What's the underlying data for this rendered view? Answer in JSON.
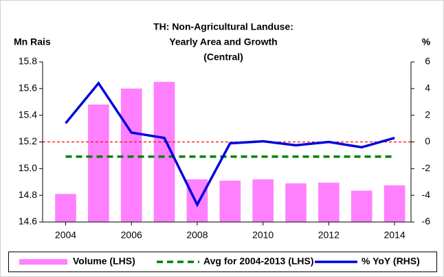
{
  "chart_data": {
    "type": "combo",
    "title": [
      "TH: Non-Agricultural Landuse:",
      "Yearly Area and Growth",
      "(Central)"
    ],
    "ylabel": "Mn Rais",
    "y2label": "%",
    "x": [
      2004,
      2005,
      2006,
      2007,
      2008,
      2009,
      2010,
      2011,
      2012,
      2013,
      2014
    ],
    "xlim": [
      2003.3,
      2014.5
    ],
    "xticks": [
      2004,
      2006,
      2008,
      2010,
      2012,
      2014
    ],
    "ylim": [
      14.6,
      15.8
    ],
    "yticks": [
      14.6,
      14.8,
      {
        "value": 15,
        "label": "15.0"
      },
      15.2,
      15.4,
      15.6,
      15.8
    ],
    "y2lim": [
      -6,
      6
    ],
    "y2ticks": [
      -6,
      -4,
      -2,
      0,
      2,
      4,
      6
    ],
    "y2_zero_line_color": "#ff0000",
    "series": [
      {
        "name": "Volume (LHS)",
        "kind": "bar",
        "color": "#ff80ff",
        "values": [
          14.81,
          15.48,
          15.6,
          15.65,
          14.92,
          14.91,
          14.92,
          14.89,
          14.895,
          14.835,
          14.875
        ]
      },
      {
        "name": "Avg for 2004-2013 (LHS)",
        "kind": "line",
        "dashed": true,
        "color": "#008000",
        "values": [
          15.09,
          15.09,
          15.09,
          15.09,
          15.09,
          15.09,
          15.09,
          15.09,
          15.09,
          15.09,
          15.09
        ]
      },
      {
        "name": "% YoY (RHS)",
        "kind": "line",
        "axis": "y2",
        "color": "#0000dd",
        "values": [
          1.4,
          4.4,
          0.7,
          0.3,
          -4.7,
          -0.1,
          0.05,
          -0.25,
          0,
          -0.4,
          0.3
        ]
      }
    ]
  }
}
